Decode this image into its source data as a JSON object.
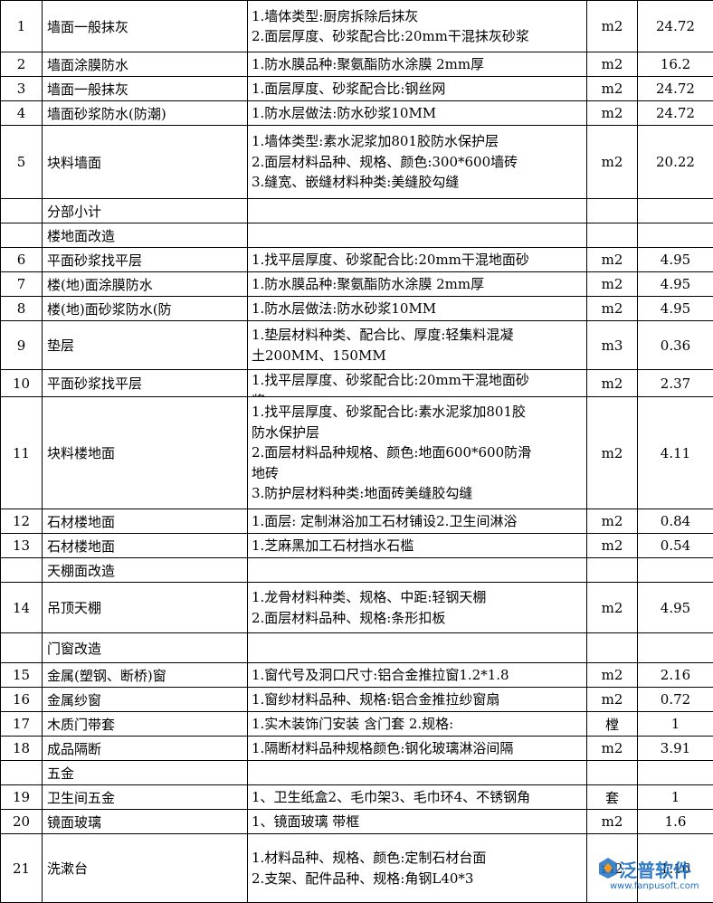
{
  "table": {
    "rows": [
      {
        "no": "1",
        "name": "墙面一般抹灰",
        "desc": [
          "1.墙体类型:厨房拆除后抹灰",
          "2.面层厚度、砂浆配合比:20mm干混抹灰砂浆"
        ],
        "unit": "m2",
        "qty": "24.72"
      },
      {
        "no": "2",
        "name": "墙面涂膜防水",
        "desc": [
          "1.防水膜品种:聚氨酯防水涂膜 2mm厚"
        ],
        "unit": "m2",
        "qty": "16.2"
      },
      {
        "no": "3",
        "name": "墙面一般抹灰",
        "desc": [
          "1.面层厚度、砂浆配合比:钢丝网"
        ],
        "unit": "m2",
        "qty": "24.72"
      },
      {
        "no": "4",
        "name": "墙面砂浆防水(防潮)",
        "desc": [
          "1.防水层做法:防水砂浆10MM"
        ],
        "unit": "m2",
        "qty": "24.72"
      },
      {
        "no": "5",
        "name": "块料墙面",
        "desc": [
          "1.墙体类型:素水泥浆加801胶防水保护层",
          "2.面层材料品种、规格、颜色:300*600墙砖",
          "3.缝宽、嵌缝材料种类:美缝胶勾缝"
        ],
        "unit": "m2",
        "qty": "20.22"
      },
      {
        "name": "分部小计"
      },
      {
        "name": "楼地面改造"
      },
      {
        "no": "6",
        "name": "平面砂浆找平层",
        "desc": [
          "1.找平层厚度、砂浆配合比:20mm干混地面砂"
        ],
        "unit": "m2",
        "qty": "4.95"
      },
      {
        "no": "7",
        "name": "楼(地)面涂膜防水",
        "desc": [
          "1.防水膜品种:聚氨酯防水涂膜 2mm厚"
        ],
        "unit": "m2",
        "qty": "4.95"
      },
      {
        "no": "8",
        "name": "楼(地)面砂浆防水(防",
        "desc": [
          "1.防水层做法:防水砂浆10MM"
        ],
        "unit": "m2",
        "qty": "4.95"
      },
      {
        "no": "9",
        "name": "垫层",
        "desc": [
          "1.垫层材料种类、配合比、厚度:轻集料混凝",
          "土200MM、150MM"
        ],
        "unit": "m3",
        "qty": "0.36"
      },
      {
        "no": "10",
        "name": "平面砂浆找平层",
        "desc": [
          "1.找平层厚度、砂浆配合比:20mm干混地面砂",
          "浆"
        ],
        "unit": "m2",
        "qty": "2.37"
      },
      {
        "no": "11",
        "name": "块料楼地面",
        "desc": [
          "1.找平层厚度、砂浆配合比:素水泥浆加801胶",
          "防水保护层",
          "2.面层材料品种规格、颜色:地面600*600防滑",
          "地砖",
          "3.防护层材料种类:地面砖美缝胶勾缝"
        ],
        "unit": "m2",
        "qty": "4.11"
      },
      {
        "no": "12",
        "name": "石材楼地面",
        "desc": [
          "1.面层: 定制淋浴加工石材铺设2.卫生间淋浴"
        ],
        "unit": "m2",
        "qty": "0.84"
      },
      {
        "no": "13",
        "name": "石材楼地面",
        "desc": [
          "1.芝麻黑加工石材挡水石槛"
        ],
        "unit": "m2",
        "qty": "0.54"
      },
      {
        "name": "天棚面改造"
      },
      {
        "no": "14",
        "name": "吊顶天棚",
        "desc": [
          "1.龙骨材料种类、规格、中距:轻钢天棚",
          "2.面层材料品种、规格:条形扣板"
        ],
        "unit": "m2",
        "qty": "4.95"
      },
      {
        "name": "门窗改造"
      },
      {
        "no": "15",
        "name": "金属(塑钢、断桥)窗",
        "desc": [
          "1.窗代号及洞口尺寸:铝合金推拉窗1.2*1.8"
        ],
        "unit": "m2",
        "qty": "2.16"
      },
      {
        "no": "16",
        "name": "金属纱窗",
        "desc": [
          "1.窗纱材料品种、规格:铝合金推拉纱窗扇"
        ],
        "unit": "m2",
        "qty": "0.72"
      },
      {
        "no": "17",
        "name": "木质门带套",
        "desc": [
          "1.实木装饰门安装 含门套  2.规格:"
        ],
        "unit": "樘",
        "qty": "1"
      },
      {
        "no": "18",
        "name": "成品隔断",
        "desc": [
          "1.隔断材料品种规格颜色:钢化玻璃淋浴间隔"
        ],
        "unit": "m2",
        "qty": "3.91"
      },
      {
        "name": "五金"
      },
      {
        "no": "19",
        "name": "卫生间五金",
        "desc": [
          "1、卫生纸盒2、毛巾架3、毛巾环4、不锈钢角"
        ],
        "unit": "套",
        "qty": "1"
      },
      {
        "no": "20",
        "name": "镜面玻璃",
        "desc": [
          "1、镜面玻璃 带框"
        ],
        "unit": "m2",
        "qty": "1.6"
      },
      {
        "no": "21",
        "name": "洗漱台",
        "desc": [
          "1.材料品种、规格、颜色:定制石材台面",
          "2.支架、配件品种、规格:角钢L40*3"
        ],
        "unit": "m2",
        "qty": "1.16"
      }
    ]
  },
  "watermark": {
    "title": "泛普软件",
    "url": "www.fanpusoft.com"
  }
}
